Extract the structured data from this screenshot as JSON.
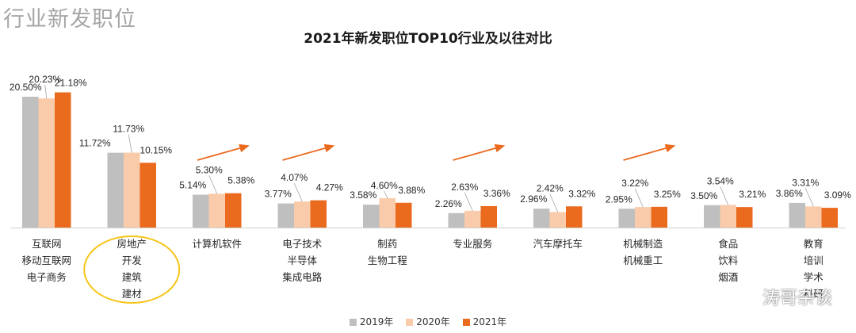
{
  "page": {
    "title": "行业新发职位"
  },
  "colors": {
    "y2019": "#bfbfbf",
    "y2020": "#f9cbaa",
    "y2021": "#ea6a1e",
    "arrow": "#ea6a1e",
    "highlight": "#f5c518",
    "axis": "#d0d0d0"
  },
  "watermark": {
    "text": "涛哥杂谈",
    "icon": "wechat-icon"
  },
  "chart_data": {
    "type": "bar",
    "title": "2021年新发职位TOP10行业及以往对比",
    "xlabel": "",
    "ylabel": "",
    "ylim": [
      0,
      25
    ],
    "legend_position": "bottom",
    "categories": [
      [
        "互联网",
        "移动互联网",
        "电子商务"
      ],
      [
        "房地产",
        "开发",
        "建筑",
        "建材"
      ],
      [
        "计算机软件"
      ],
      [
        "电子技术",
        "半导体",
        "集成电路"
      ],
      [
        "制药",
        "生物工程"
      ],
      [
        "专业服务"
      ],
      [
        "汽车摩托车"
      ],
      [
        "机械制造",
        "机械重工"
      ],
      [
        "食品",
        "饮料",
        "烟酒"
      ],
      [
        "教育",
        "培训",
        "学术",
        "科研"
      ]
    ],
    "series": [
      {
        "name": "2019年",
        "values": [
          20.5,
          11.72,
          5.14,
          3.77,
          3.58,
          2.26,
          2.96,
          2.95,
          3.5,
          3.86
        ],
        "labels": [
          "20.50%",
          "11.72%",
          "5.14%",
          "3.77%",
          "3.58%",
          "2.26%",
          "2.96%",
          "2.95%",
          "3.50%",
          "3.86%"
        ]
      },
      {
        "name": "2020年",
        "values": [
          20.23,
          11.73,
          5.3,
          4.07,
          4.6,
          2.63,
          2.42,
          3.22,
          3.54,
          3.31
        ],
        "labels": [
          "20.23%",
          "11.73%",
          "5.30%",
          "4.07%",
          "4.60%",
          "2.63%",
          "2.42%",
          "3.22%",
          "3.54%",
          "3.31%"
        ]
      },
      {
        "name": "2021年",
        "values": [
          21.18,
          10.15,
          5.38,
          4.27,
          3.88,
          3.36,
          3.32,
          3.25,
          3.21,
          3.09
        ],
        "labels": [
          "21.18%",
          "10.15%",
          "5.38%",
          "4.27%",
          "3.88%",
          "3.36%",
          "3.32%",
          "3.25%",
          "3.21%",
          "3.09%"
        ]
      }
    ],
    "rising_arrows": [
      "计算机软件",
      "电子技术",
      "专业服务",
      "机械制造"
    ],
    "highlighted_category": "房地产"
  }
}
